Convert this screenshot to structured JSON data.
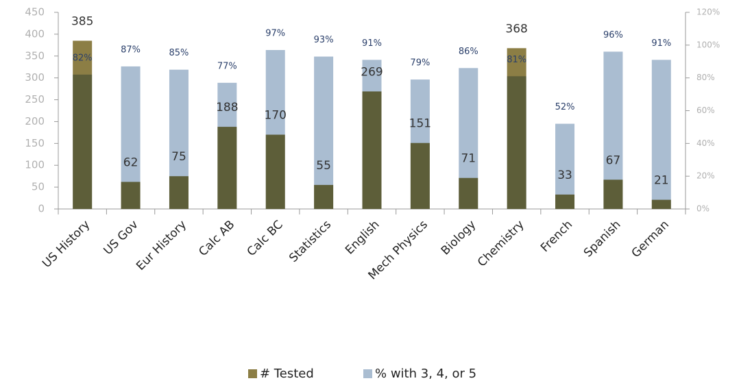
{
  "chart_data": {
    "type": "bar",
    "categories": [
      "US History",
      "US Gov",
      "Eur History",
      "Calc AB",
      "Calc BC",
      "Statistics",
      "English",
      "Mech Physics",
      "Biology",
      "Chemistry",
      "French",
      "Spanish",
      "German"
    ],
    "series": [
      {
        "name": "# Tested",
        "color": "#8c7e45",
        "values": [
          385,
          62,
          75,
          188,
          170,
          55,
          269,
          151,
          71,
          368,
          33,
          67,
          21
        ]
      },
      {
        "name": "% with 3, 4, or 5",
        "color": "#aabdd1",
        "axis": "y2",
        "values": [
          82,
          87,
          85,
          77,
          97,
          93,
          91,
          79,
          86,
          81,
          52,
          96,
          91
        ],
        "value_labels": [
          "82%",
          "87%",
          "85%",
          "77%",
          "97%",
          "93%",
          "91%",
          "79%",
          "86%",
          "81%",
          "52%",
          "96%",
          "91%"
        ]
      }
    ],
    "ylim": [
      0,
      450
    ],
    "yticks": [
      0,
      50,
      100,
      150,
      200,
      250,
      300,
      350,
      400,
      450
    ],
    "y2lim": [
      0,
      120
    ],
    "y2ticks": [
      {
        "value": 0,
        "label": "0%"
      },
      {
        "value": 20,
        "label": "20%"
      },
      {
        "value": 40,
        "label": "40%"
      },
      {
        "value": 60,
        "label": "60%"
      },
      {
        "value": 80,
        "label": "80%"
      },
      {
        "value": 100,
        "label": "100%"
      },
      {
        "value": 120,
        "label": "120%"
      }
    ],
    "legend": "bottom"
  }
}
